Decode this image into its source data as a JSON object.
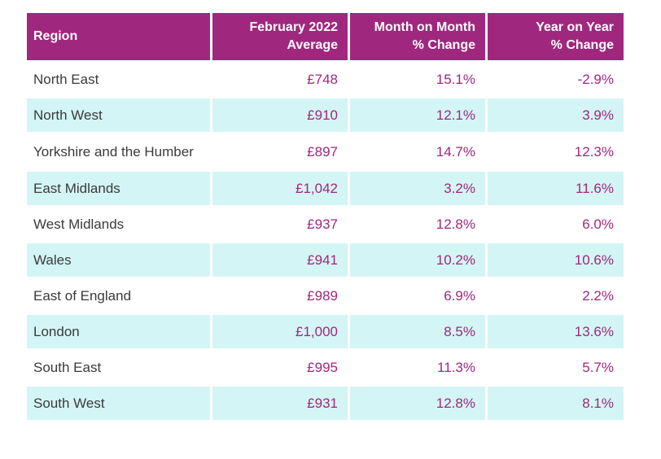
{
  "table": {
    "headers": {
      "region": "Region",
      "avg_line1": "February 2022",
      "avg_line2": "Average",
      "mom_line1": "Month on Month",
      "mom_line2": "% Change",
      "yoy_line1": "Year on Year",
      "yoy_line2": "% Change"
    },
    "rows": [
      {
        "region": "North East",
        "average": "£748",
        "mom": "15.1%",
        "yoy": "-2.9%"
      },
      {
        "region": "North West",
        "average": "£910",
        "mom": "12.1%",
        "yoy": "3.9%"
      },
      {
        "region": "Yorkshire and the Humber",
        "average": "£897",
        "mom": "14.7%",
        "yoy": "12.3%"
      },
      {
        "region": "East Midlands",
        "average": "£1,042",
        "mom": "3.2%",
        "yoy": "11.6%"
      },
      {
        "region": "West Midlands",
        "average": "£937",
        "mom": "12.8%",
        "yoy": "6.0%"
      },
      {
        "region": "Wales",
        "average": "£941",
        "mom": "10.2%",
        "yoy": "10.6%"
      },
      {
        "region": "East of England",
        "average": "£989",
        "mom": "6.9%",
        "yoy": "2.2%"
      },
      {
        "region": "London",
        "average": "£1,000",
        "mom": "8.5%",
        "yoy": "13.6%"
      },
      {
        "region": "South East",
        "average": "£995",
        "mom": "11.3%",
        "yoy": "5.7%"
      },
      {
        "region": "South West",
        "average": "£931",
        "mom": "12.8%",
        "yoy": "8.1%"
      }
    ]
  },
  "colors": {
    "header_bg": "#a0277e",
    "accent_text": "#a0277e",
    "stripe_bg": "#d4f5f5"
  }
}
